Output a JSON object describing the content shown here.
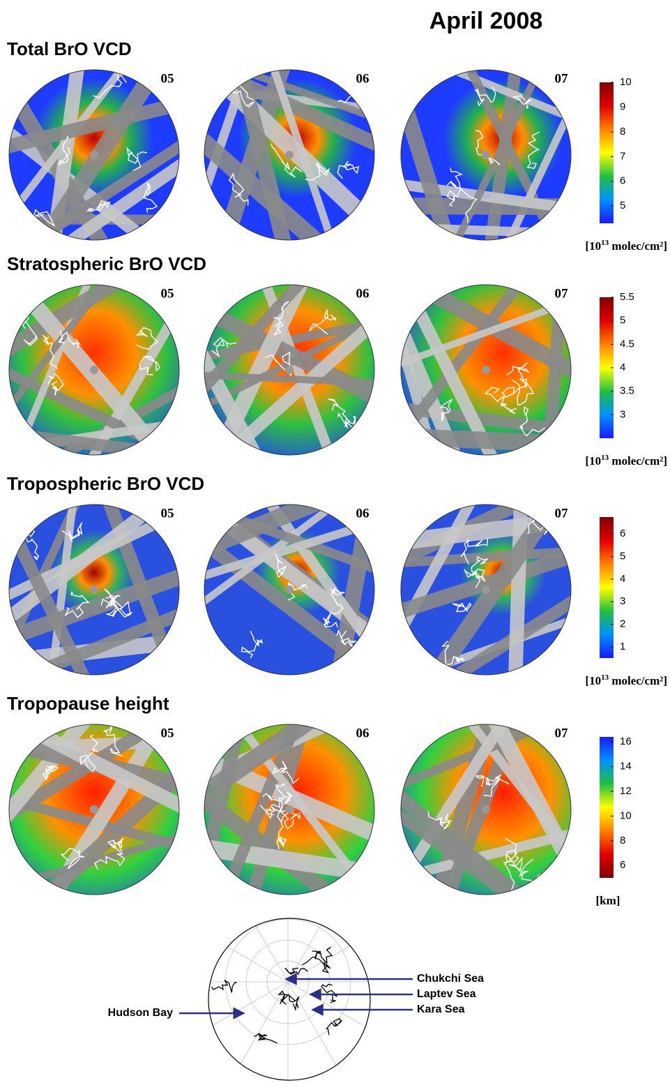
{
  "title": "April 2008",
  "panels": [
    {
      "title": "Total BrO VCD",
      "days": [
        "05",
        "06",
        "07"
      ],
      "colorbar": {
        "lim": [
          4.3,
          10
        ],
        "ticks": [
          5,
          6,
          7,
          8,
          9,
          10
        ],
        "reversed": false,
        "colormap": [
          "#1a1aff",
          "#0090ff",
          "#20c040",
          "#ffff00",
          "#ff8000",
          "#e00000",
          "#800000"
        ],
        "unit": {
          "text": "[10",
          "sup": "13",
          "after": " molec/cm²]"
        }
      }
    },
    {
      "title": "Stratospheric BrO VCD",
      "days": [
        "05",
        "06",
        "07"
      ],
      "colorbar": {
        "lim": [
          2.5,
          5.5
        ],
        "ticks": [
          3,
          3.5,
          4,
          4.5,
          5,
          5.5
        ],
        "reversed": false,
        "colormap": [
          "#1a1aff",
          "#0090ff",
          "#20c040",
          "#ffff00",
          "#ff8000",
          "#e00000",
          "#800000"
        ],
        "unit": {
          "text": "[10",
          "sup": "13",
          "after": " molec/cm²]"
        }
      }
    },
    {
      "title": "Tropospheric BrO VCD",
      "days": [
        "05",
        "06",
        "07"
      ],
      "colorbar": {
        "lim": [
          0.5,
          6.75
        ],
        "ticks": [
          1,
          2,
          3,
          4,
          5,
          6
        ],
        "reversed": false,
        "colormap": [
          "#1a1aff",
          "#0090ff",
          "#20c040",
          "#ffff00",
          "#ff8000",
          "#e00000",
          "#800000"
        ],
        "unit": {
          "text": "[10",
          "sup": "13",
          "after": " molec/cm²]"
        }
      }
    },
    {
      "title": "Tropopause height",
      "days": [
        "05",
        "06",
        "07"
      ],
      "colorbar": {
        "lim": [
          5,
          16.4
        ],
        "ticks": [
          6,
          8,
          10,
          12,
          14,
          16
        ],
        "reversed": true,
        "colormap": [
          "#1a1aff",
          "#0090ff",
          "#20c040",
          "#ffff00",
          "#ff8000",
          "#e00000",
          "#800000"
        ],
        "unit": {
          "text": "[km]"
        }
      }
    }
  ],
  "reference_map": {
    "labels": [
      "Chukchi Sea",
      "Laptev Sea",
      "Kara Sea",
      "Hudson Bay"
    ]
  }
}
